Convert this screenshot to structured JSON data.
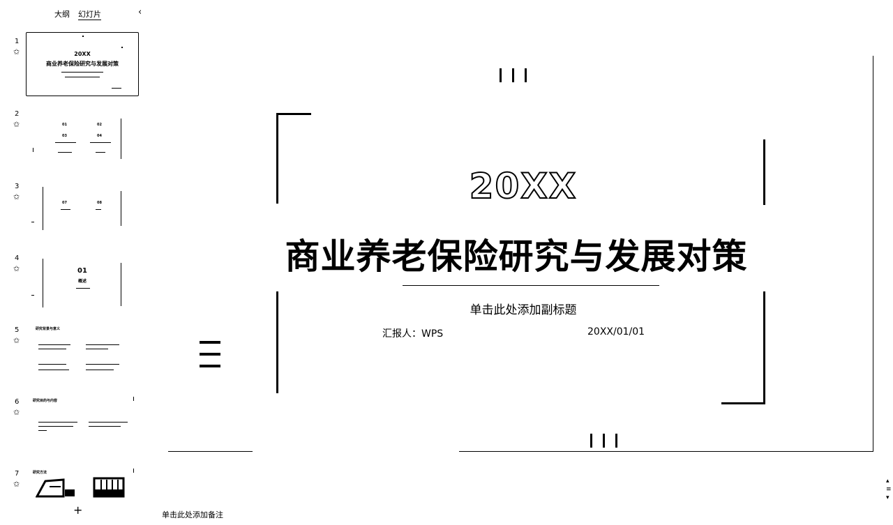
{
  "panel": {
    "tabs": [
      "大纲",
      "幻灯片"
    ],
    "collapse_icon": "‹"
  },
  "slides": [
    {
      "num": "1",
      "title1": "20XX",
      "title2": "商业养老保险研究与发展对策"
    },
    {
      "num": "2",
      "labels": [
        "01",
        "02",
        "03",
        "04"
      ]
    },
    {
      "num": "3",
      "labels": [
        "07",
        "08"
      ]
    },
    {
      "num": "4",
      "labels": [
        "01",
        "概述"
      ]
    },
    {
      "num": "5",
      "labels": [
        "研究背景与意义"
      ]
    },
    {
      "num": "6",
      "labels": [
        "研究目的与内容"
      ]
    },
    {
      "num": "7",
      "labels": [
        "研究方法"
      ]
    }
  ],
  "add_slide_icon": "+",
  "notes_placeholder": "单击此处添加备注",
  "slide": {
    "year": "20XX",
    "title": "商业养老保险研究与发展对策",
    "subtitle": "单击此处添加副标题",
    "reporter": "汇报人：WPS",
    "date": "20XX/01/01"
  }
}
